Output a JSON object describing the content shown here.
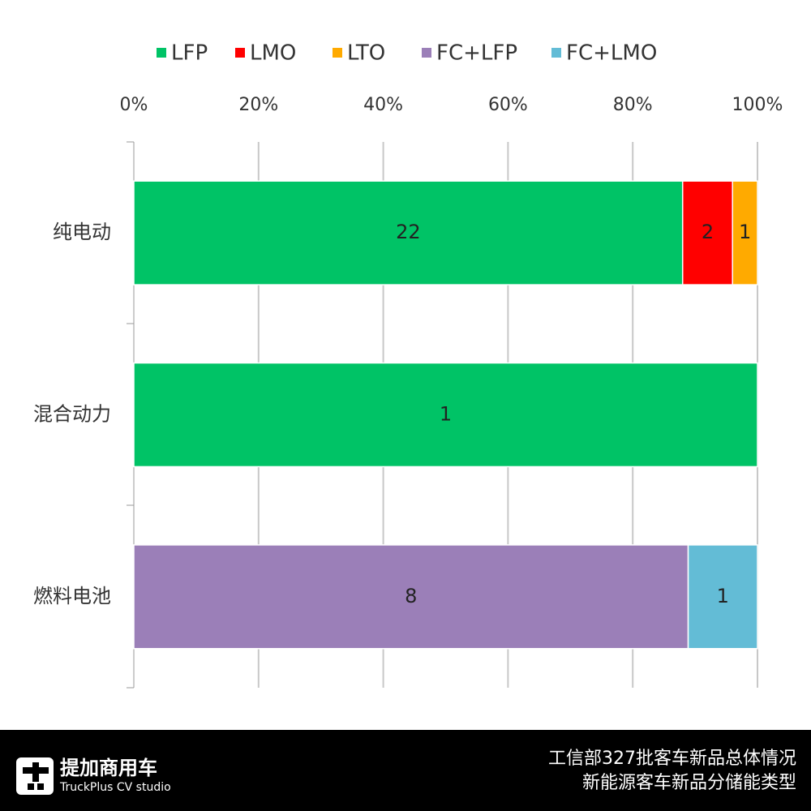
{
  "chart_data": {
    "type": "bar",
    "orientation": "horizontal",
    "stacking": "percent",
    "categories": [
      "纯电动",
      "混合动力",
      "燃料电池"
    ],
    "series": [
      {
        "name": "LFP",
        "color": "#00c366",
        "values": [
          22,
          1,
          null
        ]
      },
      {
        "name": "LMO",
        "color": "#ff0000",
        "values": [
          2,
          null,
          null
        ]
      },
      {
        "name": "LTO",
        "color": "#ffaa00",
        "values": [
          1,
          null,
          null
        ]
      },
      {
        "name": "FC+LFP",
        "color": "#9b7fb8",
        "values": [
          null,
          null,
          8
        ]
      },
      {
        "name": "FC+LMO",
        "color": "#63bcd6",
        "values": [
          null,
          null,
          1
        ]
      }
    ],
    "xlim": [
      0,
      100
    ],
    "xticks": [
      {
        "value": 0,
        "label": "0%"
      },
      {
        "value": 20,
        "label": "20%"
      },
      {
        "value": 40,
        "label": "40%"
      },
      {
        "value": 60,
        "label": "60%"
      },
      {
        "value": 80,
        "label": "80%"
      },
      {
        "value": 100,
        "label": "100%"
      }
    ],
    "grid": true,
    "legend": "top"
  },
  "footer": {
    "brand": "提加商用车",
    "brand_sub": "TruckPlus CV studio",
    "caption": [
      "工信部327批客车新品总体情况",
      "新能源客车新品分储能类型"
    ]
  }
}
